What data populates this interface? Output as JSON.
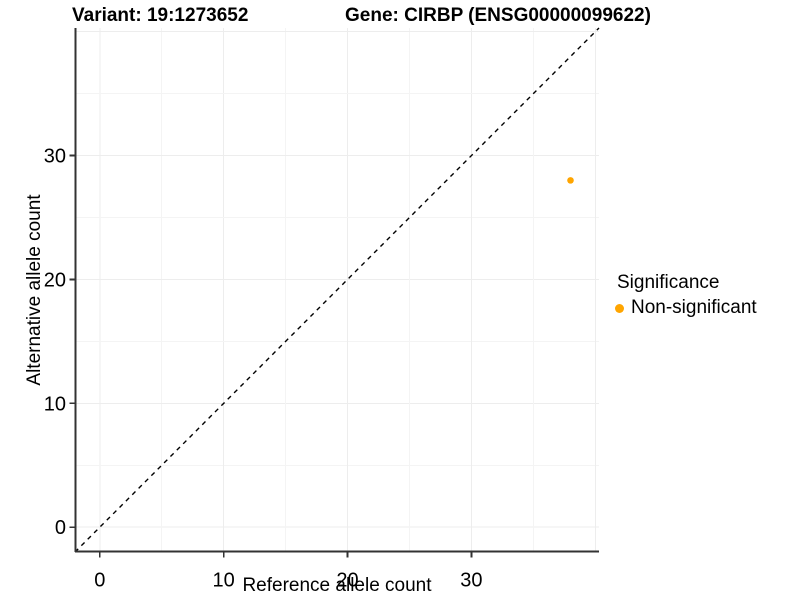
{
  "chart_data": {
    "type": "scatter",
    "title_left": "Variant: 19:1273652",
    "title_right": "Gene: CIRBP (ENSG00000099622)",
    "xlabel": "Reference allele count",
    "ylabel": "Alternative allele count",
    "xlim": [
      -2,
      40.3
    ],
    "ylim": [
      -2,
      40.3
    ],
    "xticks": [
      0,
      10,
      20,
      30
    ],
    "yticks": [
      0,
      10,
      20,
      30
    ],
    "minor_grid_step": 5,
    "grid": true,
    "points": [
      {
        "x": 38,
        "y": 28,
        "series": "Non-significant"
      }
    ],
    "point_radius": 3.3,
    "reference_line": {
      "type": "identity y=x",
      "style": "dashed",
      "color": "#000000"
    },
    "legend": {
      "title": "Significance",
      "position": "right",
      "items": [
        {
          "label": "Non-significant",
          "color": "#FFA500"
        }
      ]
    },
    "colors": {
      "point": "#FFA500",
      "grid_major": "#EDEDED",
      "grid_minor": "#F4F4F4",
      "axis_line": "#333333",
      "tick_text": "#000000",
      "background": "#FFFFFF"
    }
  }
}
